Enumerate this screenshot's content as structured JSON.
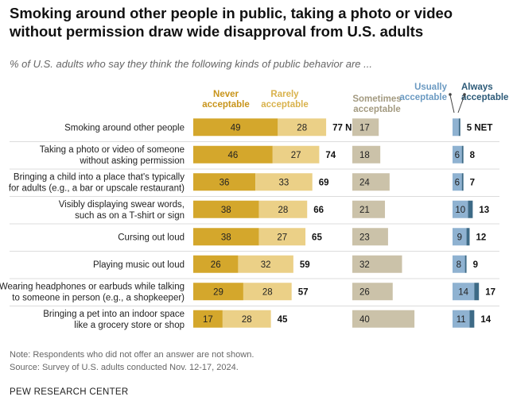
{
  "title": "Smoking around other people in public, taking a photo or video without permission draw wide disapproval from U.S. adults",
  "subtitle": "% of U.S. adults who say they think the following kinds of public behavior are ...",
  "notes": {
    "note": "Note: Respondents who did not offer an answer are not shown.",
    "source": "Source: Survey of U.S. adults conducted Nov. 12-17, 2024.",
    "brand": "PEW RESEARCH CENTER"
  },
  "colors": {
    "never": "#d4a72c",
    "rarely": "#ebd087",
    "sometimes": "#cbc2a9",
    "usually": "#8fb2d1",
    "always": "#3d6a86",
    "total_text": "#111111",
    "header_never": "#c8941a",
    "header_rarely": "#d9b24c",
    "header_sometimes": "#a39a80",
    "header_usually": "#6b9ac2",
    "header_always": "#2c5a78"
  },
  "chart_data": {
    "type": "bar",
    "stacked": true,
    "columns": {
      "never": "Never acceptable",
      "rarely": "Rarely acceptable",
      "sometimes": "Sometimes acceptable",
      "usually": "Usually acceptable",
      "always": "Always acceptable"
    },
    "net_label": "NET",
    "categories": [
      "Smoking around other people",
      "Taking a photo or video of someone without asking permission",
      "Bringing a child into a place that's typically for adults (e.g., a bar or upscale restaurant)",
      "Visibly displaying swear words, such as on a T-shirt or sign",
      "Cursing out loud",
      "Playing music out loud",
      "Wearing headphones or earbuds while talking to someone in person (e.g., a shopkeeper)",
      "Bringing a pet into an indoor space like a grocery store or shop"
    ],
    "category_lines": [
      [
        "Smoking around other people"
      ],
      [
        "Taking a photo or video of someone",
        "without asking permission"
      ],
      [
        "Bringing a child into a place that's typically",
        "for adults (e.g., a bar or upscale restaurant)"
      ],
      [
        "Visibly displaying swear words,",
        "such as on a T-shirt or sign"
      ],
      [
        "Cursing out loud"
      ],
      [
        "Playing music out loud"
      ],
      [
        "Wearing headphones or earbuds while talking",
        "to someone in person (e.g., a shopkeeper)"
      ],
      [
        "Bringing a pet into an indoor space",
        "like a grocery store or shop"
      ]
    ],
    "series": [
      {
        "name": "Never acceptable",
        "key": "never",
        "values": [
          49,
          46,
          36,
          38,
          38,
          26,
          29,
          17
        ]
      },
      {
        "name": "Rarely acceptable",
        "key": "rarely",
        "values": [
          28,
          27,
          33,
          28,
          27,
          32,
          28,
          28
        ]
      },
      {
        "name": "Sometimes acceptable",
        "key": "sometimes",
        "values": [
          17,
          18,
          24,
          21,
          23,
          32,
          26,
          40
        ]
      },
      {
        "name": "Usually acceptable",
        "key": "usually",
        "values": [
          4,
          6,
          6,
          10,
          9,
          8,
          14,
          11
        ]
      },
      {
        "name": "Always acceptable",
        "key": "always",
        "values": [
          1,
          1,
          1,
          3,
          2,
          1,
          3,
          3
        ]
      }
    ],
    "unacceptable_net": [
      "77",
      "74",
      "69",
      "66",
      "65",
      "59",
      "57",
      "45"
    ],
    "acceptable_net": [
      "5",
      "8",
      "7",
      "13",
      "12",
      "9",
      "17",
      "14"
    ],
    "usually_labels": [
      "",
      "6",
      "6",
      "10",
      "9",
      "8",
      "14",
      "11"
    ],
    "always_labels": [
      "",
      "",
      "",
      "",
      "",
      "",
      "",
      ""
    ]
  }
}
